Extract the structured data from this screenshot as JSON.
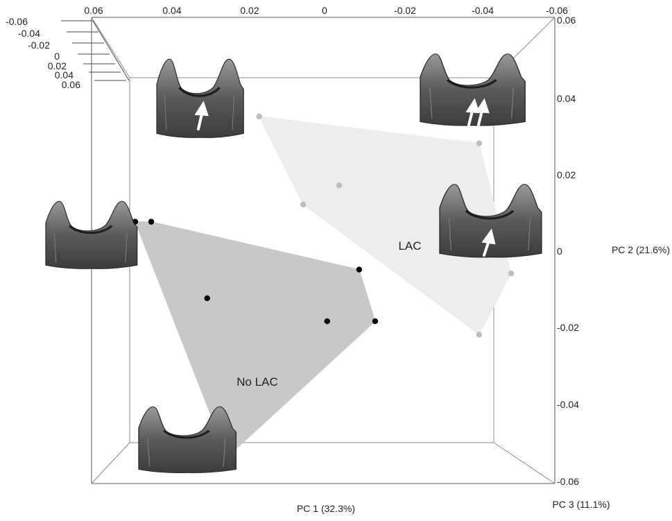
{
  "chart_data": {
    "type": "scatter",
    "title": "",
    "xlabel": "PC 1 (32.3%)",
    "ylabel": "PC 2 (21.6%)",
    "zlabel": "PC 3 (11.1%)",
    "x_ticks": [
      "0.06",
      "0.04",
      "0.02",
      "0",
      "-0.02",
      "-0.04",
      "-0.06"
    ],
    "y_ticks": [
      "0.06",
      "0.04",
      "0.02",
      "0",
      "-0.02",
      "-0.04",
      "-0.06"
    ],
    "z_ticks": [
      "-0.06",
      "-0.04",
      "-0.02",
      "0",
      "0.02",
      "0.04",
      "0.06"
    ],
    "xlim": [
      0.06,
      -0.06
    ],
    "ylim": [
      -0.06,
      0.06
    ],
    "zlim": [
      -0.06,
      0.06
    ],
    "series": [
      {
        "name": "No LAC",
        "color": "#000000",
        "hull_color": "#c8c8c8",
        "points": [
          {
            "x": 0.047,
            "y": 0.0075
          },
          {
            "x": 0.043,
            "y": 0.0075
          },
          {
            "x": 0.029,
            "y": -0.0125
          },
          {
            "x": -0.001,
            "y": -0.0185
          },
          {
            "x": -0.013,
            "y": -0.0185
          },
          {
            "x": -0.009,
            "y": -0.005
          },
          {
            "x": 0.024,
            "y": -0.054
          }
        ]
      },
      {
        "name": "LAC",
        "color": "#bdbdbd",
        "hull_color": "#ededed",
        "points": [
          {
            "x": 0.016,
            "y": 0.035
          },
          {
            "x": -0.039,
            "y": 0.028
          },
          {
            "x": -0.004,
            "y": 0.017
          },
          {
            "x": 0.005,
            "y": 0.012
          },
          {
            "x": -0.047,
            "y": -0.006
          },
          {
            "x": -0.039,
            "y": -0.022
          }
        ]
      }
    ],
    "annotations": [
      "LAC",
      "No LAC"
    ],
    "icons": [
      "tooth-model-icon",
      "tooth-model-icon",
      "tooth-model-icon",
      "tooth-model-icon",
      "tooth-model-icon"
    ]
  }
}
